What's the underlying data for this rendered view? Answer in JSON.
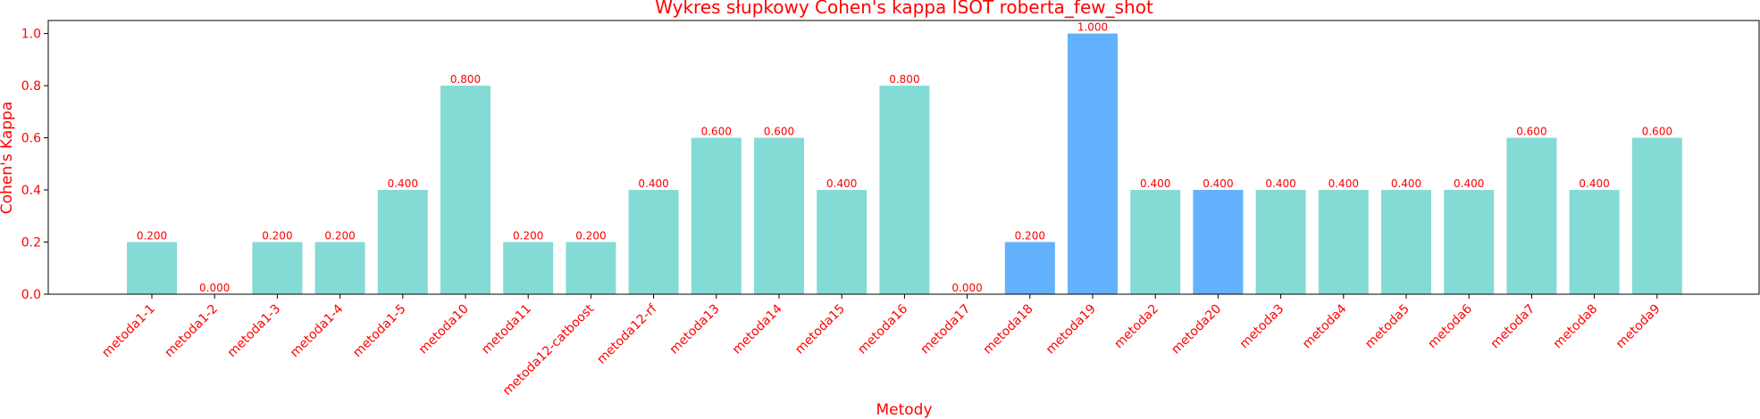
{
  "chart_data": {
    "type": "bar",
    "title": "Wykres słupkowy Cohen's kappa ISOT roberta_few_shot",
    "xlabel": "Metody",
    "ylabel": "Cohen's Kappa",
    "ylim": [
      0,
      1.05
    ],
    "yticks": [
      "0.0",
      "0.2",
      "0.4",
      "0.6",
      "0.8",
      "1.0"
    ],
    "grid": false,
    "legend": "none",
    "categories": [
      "metoda1-1",
      "metoda1-2",
      "metoda1-3",
      "metoda1-4",
      "metoda1-5",
      "metoda10",
      "metoda11",
      "metoda12-catboost",
      "metoda12-rf",
      "metoda13",
      "metoda14",
      "metoda15",
      "metoda16",
      "metoda17",
      "metoda18",
      "metoda19",
      "metoda2",
      "metoda20",
      "metoda3",
      "metoda4",
      "metoda5",
      "metoda6",
      "metoda7",
      "metoda8",
      "metoda9"
    ],
    "values": [
      0.2,
      0.0,
      0.2,
      0.2,
      0.4,
      0.8,
      0.2,
      0.2,
      0.4,
      0.6,
      0.6,
      0.4,
      0.8,
      0.0,
      0.2,
      1.0,
      0.4,
      0.4,
      0.4,
      0.4,
      0.4,
      0.4,
      0.6,
      0.4,
      0.6
    ],
    "value_labels": [
      "0.200",
      "0.000",
      "0.200",
      "0.200",
      "0.400",
      "0.800",
      "0.200",
      "0.200",
      "0.400",
      "0.600",
      "0.600",
      "0.400",
      "0.800",
      "0.000",
      "0.200",
      "1.000",
      "0.400",
      "0.400",
      "0.400",
      "0.400",
      "0.400",
      "0.400",
      "0.600",
      "0.400",
      "0.600"
    ],
    "highlighted": [
      "metoda18",
      "metoda19",
      "metoda20"
    ],
    "colors": {
      "bar": "#84dbd5",
      "highlight": "#62b1fc",
      "text": "#ff0000",
      "axis": "#000000"
    }
  }
}
